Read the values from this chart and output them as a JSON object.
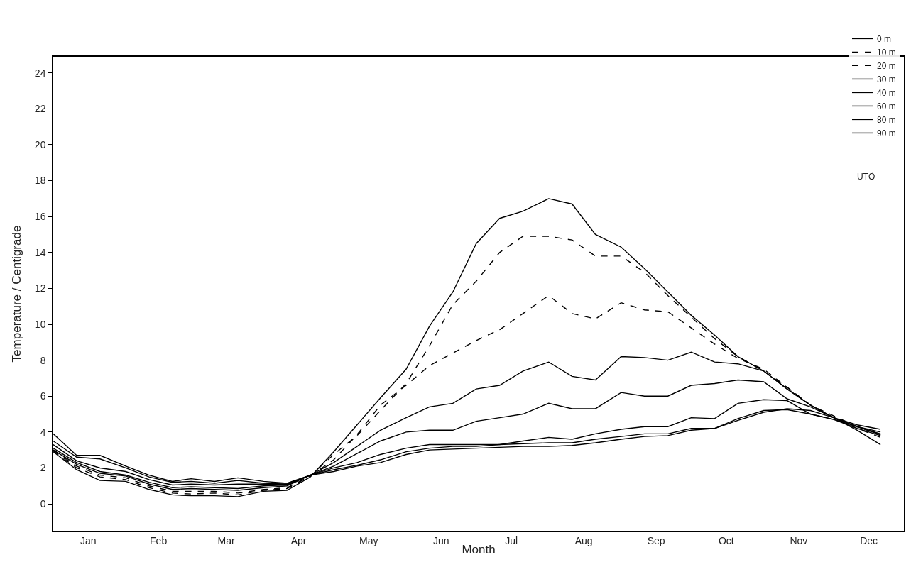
{
  "chart_data": {
    "type": "line",
    "xlabel": "Month",
    "ylabel": "Temperature / Centigrade",
    "annotations": [
      "UTÖ"
    ],
    "x": [
      "--01-01",
      "--01-11",
      "--01-21",
      "--02-01",
      "--02-11",
      "--02-21",
      "--03-01",
      "--03-11",
      "--03-21",
      "--04-01",
      "--04-11",
      "--04-21",
      "--05-01",
      "--05-11",
      "--05-21",
      "--06-01",
      "--06-11",
      "--06-21",
      "--07-01",
      "--07-11",
      "--07-21",
      "--08-01",
      "--08-11",
      "--08-21",
      "--09-01",
      "--09-11",
      "--09-21",
      "--10-01",
      "--10-11",
      "--10-21",
      "--11-01",
      "--11-11",
      "--11-21",
      "--12-01",
      "--12-11",
      "--12-21"
    ],
    "xlim": [
      "--01-01",
      "--12-31"
    ],
    "xticks": [
      {
        "value": "--01-16",
        "label": "Jan"
      },
      {
        "value": "--02-15",
        "label": "Feb"
      },
      {
        "value": "--03-16",
        "label": "Mar"
      },
      {
        "value": "--04-16",
        "label": "Apr"
      },
      {
        "value": "--05-16",
        "label": "May"
      },
      {
        "value": "--06-16",
        "label": "Jun"
      },
      {
        "value": "--07-16",
        "label": "Jul"
      },
      {
        "value": "--08-16",
        "label": "Aug"
      },
      {
        "value": "--09-16",
        "label": "Sep"
      },
      {
        "value": "--10-16",
        "label": "Oct"
      },
      {
        "value": "--11-16",
        "label": "Nov"
      },
      {
        "value": "--12-16",
        "label": "Dec"
      }
    ],
    "ylim": [
      -1.5,
      24.9
    ],
    "yticks": [
      0,
      2,
      4,
      6,
      8,
      10,
      12,
      14,
      16,
      18,
      20,
      22,
      24
    ],
    "legend": "top right",
    "grid": false,
    "marker": "none",
    "series": [
      {
        "name": "0 m",
        "color": "#000000",
        "line_style": "solid",
        "values": [
          2.9,
          1.9,
          1.3,
          1.25,
          0.8,
          0.5,
          0.45,
          0.45,
          0.4,
          0.7,
          0.75,
          1.5,
          2.9,
          4.4,
          5.9,
          7.5,
          9.9,
          11.8,
          14.5,
          15.9,
          16.3,
          17.0,
          16.7,
          15.0,
          14.3,
          13.1,
          11.8,
          10.5,
          9.4,
          8.2,
          7.4,
          6.4,
          5.5,
          4.8,
          4.1,
          3.3
        ]
      },
      {
        "name": "10 m",
        "color": "#000000",
        "line_style": "dashed",
        "values": [
          2.95,
          2.0,
          1.5,
          1.35,
          0.9,
          0.6,
          0.55,
          0.6,
          0.5,
          0.75,
          0.85,
          1.55,
          2.75,
          3.8,
          5.2,
          6.7,
          8.8,
          11.1,
          12.4,
          14.0,
          14.9,
          14.9,
          14.7,
          13.8,
          13.8,
          12.9,
          11.6,
          10.4,
          9.2,
          8.2,
          7.4,
          6.5,
          5.5,
          4.8,
          4.2,
          3.7
        ]
      },
      {
        "name": "20 m",
        "color": "#000000",
        "line_style": "dashed",
        "values": [
          3.0,
          2.1,
          1.6,
          1.45,
          1.0,
          0.7,
          0.7,
          0.7,
          0.6,
          0.8,
          0.9,
          1.55,
          2.45,
          3.85,
          5.5,
          6.6,
          7.7,
          8.4,
          9.1,
          9.7,
          10.6,
          11.6,
          10.6,
          10.3,
          11.2,
          10.8,
          10.7,
          9.8,
          8.9,
          8.1,
          7.5,
          6.5,
          5.5,
          4.9,
          4.3,
          3.85
        ]
      },
      {
        "name": "30 m",
        "color": "#000000",
        "line_style": "solid",
        "values": [
          3.0,
          2.2,
          1.7,
          1.55,
          1.1,
          0.8,
          0.85,
          0.8,
          0.75,
          0.9,
          1.0,
          1.6,
          2.3,
          3.2,
          4.1,
          4.8,
          5.4,
          5.6,
          6.4,
          6.6,
          7.4,
          7.9,
          7.1,
          6.9,
          8.2,
          8.15,
          8.0,
          8.45,
          7.9,
          7.8,
          7.4,
          6.4,
          5.5,
          4.8,
          4.3,
          4.0
        ]
      },
      {
        "name": "40 m",
        "color": "#000000",
        "line_style": "solid",
        "values": [
          3.1,
          2.3,
          1.8,
          1.6,
          1.2,
          0.9,
          0.95,
          0.9,
          0.85,
          1.0,
          1.05,
          1.6,
          2.1,
          2.8,
          3.5,
          4.0,
          4.1,
          4.1,
          4.6,
          4.8,
          5.0,
          5.6,
          5.3,
          5.3,
          6.2,
          6.0,
          6.0,
          6.6,
          6.7,
          6.9,
          6.8,
          5.85,
          5.4,
          4.8,
          4.3,
          3.85
        ]
      },
      {
        "name": "60 m",
        "color": "#000000",
        "line_style": "solid",
        "values": [
          3.3,
          2.4,
          2.0,
          1.8,
          1.35,
          1.05,
          1.1,
          1.05,
          1.1,
          1.1,
          1.1,
          1.6,
          2.0,
          2.3,
          2.75,
          3.1,
          3.3,
          3.3,
          3.3,
          3.3,
          3.5,
          3.7,
          3.6,
          3.9,
          4.15,
          4.3,
          4.3,
          4.8,
          4.75,
          5.6,
          5.8,
          5.75,
          5.0,
          4.7,
          4.2,
          3.8
        ]
      },
      {
        "name": "80 m",
        "color": "#000000",
        "line_style": "solid",
        "values": [
          3.5,
          2.6,
          2.5,
          2.0,
          1.5,
          1.2,
          1.25,
          1.15,
          1.3,
          1.15,
          1.1,
          1.6,
          1.9,
          2.15,
          2.45,
          2.9,
          3.1,
          3.2,
          3.2,
          3.3,
          3.35,
          3.4,
          3.4,
          3.6,
          3.75,
          3.9,
          3.9,
          4.2,
          4.2,
          4.75,
          5.2,
          5.25,
          5.0,
          4.7,
          4.3,
          3.9
        ]
      },
      {
        "name": "90 m",
        "color": "#000000",
        "line_style": "solid",
        "values": [
          3.9,
          2.7,
          2.7,
          2.1,
          1.6,
          1.25,
          1.4,
          1.25,
          1.45,
          1.25,
          1.15,
          1.6,
          1.8,
          2.1,
          2.3,
          2.75,
          3.0,
          3.05,
          3.1,
          3.15,
          3.2,
          3.2,
          3.25,
          3.4,
          3.6,
          3.75,
          3.8,
          4.1,
          4.2,
          4.65,
          5.1,
          5.3,
          5.2,
          4.8,
          4.4,
          4.15
        ]
      }
    ]
  }
}
